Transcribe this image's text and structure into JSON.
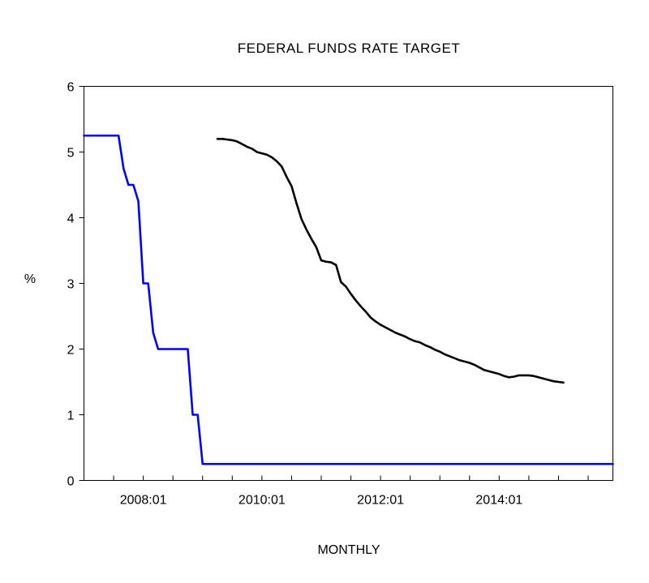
{
  "chart_data": {
    "type": "line",
    "title": "FEDERAL FUNDS RATE TARGET",
    "xlabel": "MONTHLY",
    "ylabel": "%",
    "x_ticks": [
      "2008:01",
      "2010:01",
      "2012:01",
      "2014:01"
    ],
    "x_tick_values": [
      2008.0,
      2010.0,
      2012.0,
      2014.0
    ],
    "y_ticks": [
      "0",
      "1",
      "2",
      "3",
      "4",
      "5",
      "6"
    ],
    "xlim": [
      2007.0,
      2015.917
    ],
    "ylim": [
      0,
      6
    ],
    "grid": false,
    "legend": "none",
    "series": [
      {
        "color": "#0000ff",
        "points": [
          [
            2007.0,
            5.25
          ],
          [
            2007.083,
            5.25
          ],
          [
            2007.167,
            5.25
          ],
          [
            2007.25,
            5.25
          ],
          [
            2007.333,
            5.25
          ],
          [
            2007.417,
            5.25
          ],
          [
            2007.5,
            5.25
          ],
          [
            2007.583,
            5.25
          ],
          [
            2007.667,
            4.75
          ],
          [
            2007.75,
            4.5
          ],
          [
            2007.833,
            4.5
          ],
          [
            2007.917,
            4.25
          ],
          [
            2008.0,
            3.0
          ],
          [
            2008.083,
            3.0
          ],
          [
            2008.167,
            2.25
          ],
          [
            2008.25,
            2.0
          ],
          [
            2008.333,
            2.0
          ],
          [
            2008.417,
            2.0
          ],
          [
            2008.5,
            2.0
          ],
          [
            2008.583,
            2.0
          ],
          [
            2008.667,
            2.0
          ],
          [
            2008.75,
            2.0
          ],
          [
            2008.833,
            1.0
          ],
          [
            2008.917,
            1.0
          ],
          [
            2009.0,
            0.25
          ],
          [
            2015.917,
            0.25
          ]
        ]
      },
      {
        "color": "#000000",
        "points": [
          [
            2009.25,
            5.2
          ],
          [
            2009.333,
            5.2
          ],
          [
            2009.417,
            5.19
          ],
          [
            2009.5,
            5.18
          ],
          [
            2009.583,
            5.16
          ],
          [
            2009.667,
            5.12
          ],
          [
            2009.75,
            5.08
          ],
          [
            2009.833,
            5.05
          ],
          [
            2009.917,
            5.0
          ],
          [
            2010.0,
            4.98
          ],
          [
            2010.083,
            4.96
          ],
          [
            2010.167,
            4.92
          ],
          [
            2010.25,
            4.86
          ],
          [
            2010.333,
            4.78
          ],
          [
            2010.417,
            4.62
          ],
          [
            2010.5,
            4.48
          ],
          [
            2010.583,
            4.22
          ],
          [
            2010.667,
            3.98
          ],
          [
            2010.75,
            3.82
          ],
          [
            2010.833,
            3.68
          ],
          [
            2010.917,
            3.55
          ],
          [
            2011.0,
            3.35
          ],
          [
            2011.083,
            3.33
          ],
          [
            2011.167,
            3.32
          ],
          [
            2011.25,
            3.28
          ],
          [
            2011.333,
            3.02
          ],
          [
            2011.417,
            2.95
          ],
          [
            2011.5,
            2.84
          ],
          [
            2011.583,
            2.74
          ],
          [
            2011.667,
            2.65
          ],
          [
            2011.75,
            2.57
          ],
          [
            2011.833,
            2.48
          ],
          [
            2011.917,
            2.42
          ],
          [
            2012.0,
            2.37
          ],
          [
            2012.083,
            2.33
          ],
          [
            2012.167,
            2.29
          ],
          [
            2012.25,
            2.25
          ],
          [
            2012.333,
            2.22
          ],
          [
            2012.417,
            2.19
          ],
          [
            2012.5,
            2.15
          ],
          [
            2012.583,
            2.12
          ],
          [
            2012.667,
            2.1
          ],
          [
            2012.75,
            2.06
          ],
          [
            2012.833,
            2.03
          ],
          [
            2012.917,
            1.99
          ],
          [
            2013.0,
            1.96
          ],
          [
            2013.083,
            1.92
          ],
          [
            2013.167,
            1.89
          ],
          [
            2013.25,
            1.86
          ],
          [
            2013.333,
            1.83
          ],
          [
            2013.417,
            1.81
          ],
          [
            2013.5,
            1.79
          ],
          [
            2013.583,
            1.76
          ],
          [
            2013.667,
            1.72
          ],
          [
            2013.75,
            1.68
          ],
          [
            2013.833,
            1.66
          ],
          [
            2013.917,
            1.64
          ],
          [
            2014.0,
            1.62
          ],
          [
            2014.083,
            1.59
          ],
          [
            2014.167,
            1.57
          ],
          [
            2014.25,
            1.58
          ],
          [
            2014.333,
            1.6
          ],
          [
            2014.417,
            1.6
          ],
          [
            2014.5,
            1.6
          ],
          [
            2014.583,
            1.59
          ],
          [
            2014.667,
            1.57
          ],
          [
            2014.75,
            1.55
          ],
          [
            2014.833,
            1.53
          ],
          [
            2014.917,
            1.51
          ],
          [
            2015.0,
            1.5
          ],
          [
            2015.083,
            1.49
          ]
        ]
      }
    ]
  }
}
